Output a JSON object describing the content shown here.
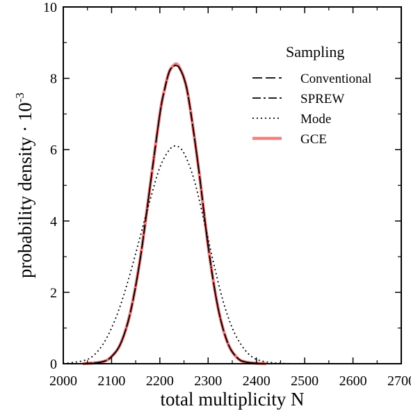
{
  "chart_data": {
    "type": "line",
    "title": "",
    "xlabel": "total multiplicity N",
    "ylabel_main": "probability density · 10",
    "ylabel_exp": "-3",
    "xlim": [
      2000,
      2700
    ],
    "ylim": [
      0,
      10
    ],
    "xticks": [
      2000,
      2100,
      2200,
      2300,
      2400,
      2500,
      2600,
      2700
    ],
    "yticks": [
      0,
      2,
      4,
      6,
      8,
      10
    ],
    "grid": false,
    "legend": {
      "title": "Sampling",
      "position": "top-right"
    },
    "series": [
      {
        "name": "Conventional",
        "style": "dashed",
        "color": "#000000",
        "x": [
          2040,
          2080,
          2100,
          2120,
          2140,
          2160,
          2180,
          2200,
          2210,
          2220,
          2230,
          2235,
          2240,
          2250,
          2260,
          2280,
          2300,
          2320,
          2340,
          2360,
          2380,
          2420
        ],
        "y": [
          0.0,
          0.05,
          0.2,
          0.6,
          1.5,
          3.0,
          5.0,
          7.0,
          7.7,
          8.2,
          8.35,
          8.35,
          8.3,
          8.0,
          7.4,
          5.5,
          3.3,
          1.6,
          0.6,
          0.17,
          0.04,
          0.0
        ]
      },
      {
        "name": "SPREW",
        "style": "dashdot",
        "color": "#000000",
        "x": [
          2040,
          2080,
          2100,
          2120,
          2140,
          2160,
          2180,
          2200,
          2210,
          2220,
          2230,
          2235,
          2240,
          2250,
          2260,
          2280,
          2300,
          2320,
          2340,
          2360,
          2380,
          2420
        ],
        "y": [
          0.0,
          0.05,
          0.2,
          0.6,
          1.5,
          3.0,
          5.0,
          7.0,
          7.7,
          8.2,
          8.35,
          8.35,
          8.3,
          8.0,
          7.4,
          5.5,
          3.3,
          1.6,
          0.6,
          0.17,
          0.04,
          0.0
        ]
      },
      {
        "name": "Mode",
        "style": "dotted",
        "color": "#000000",
        "x": [
          2000,
          2040,
          2060,
          2080,
          2100,
          2120,
          2140,
          2160,
          2180,
          2200,
          2220,
          2235,
          2250,
          2270,
          2290,
          2310,
          2330,
          2350,
          2370,
          2390,
          2410,
          2440,
          2480
        ],
        "y": [
          0.0,
          0.08,
          0.2,
          0.5,
          1.0,
          1.7,
          2.6,
          3.6,
          4.6,
          5.5,
          6.0,
          6.1,
          5.9,
          5.2,
          4.1,
          2.9,
          1.8,
          1.0,
          0.5,
          0.2,
          0.08,
          0.02,
          0.0
        ]
      },
      {
        "name": "GCE",
        "style": "solid",
        "color": "#f48080",
        "x": [
          2040,
          2080,
          2100,
          2120,
          2140,
          2160,
          2180,
          2200,
          2210,
          2220,
          2230,
          2235,
          2240,
          2250,
          2260,
          2280,
          2300,
          2320,
          2340,
          2360,
          2380,
          2420
        ],
        "y": [
          0.0,
          0.05,
          0.2,
          0.6,
          1.5,
          3.0,
          5.0,
          7.0,
          7.7,
          8.2,
          8.38,
          8.4,
          8.32,
          8.0,
          7.4,
          5.5,
          3.3,
          1.6,
          0.6,
          0.17,
          0.04,
          0.0
        ]
      }
    ]
  }
}
